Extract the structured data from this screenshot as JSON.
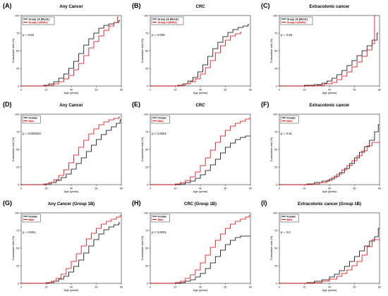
{
  "chart_data": [
    {
      "letter": "(A)",
      "title": "Any Cancer",
      "type": "line",
      "xlabel": "Age (years)",
      "ylabel": "Cumulative risk (%)",
      "xlim": [
        0,
        80
      ],
      "ylim": [
        0,
        100
      ],
      "xticks": [
        0,
        20,
        40,
        60,
        80
      ],
      "yticks": [
        0,
        25,
        50,
        75,
        100
      ],
      "pvalue": "p = 0.03",
      "legend": [
        "Group 1A (MLH1)",
        "Group 2 (MSH2)"
      ],
      "series": [
        {
          "name": "Group 1A (MLH1)",
          "color": "#000000",
          "x": [
            0,
            18,
            22,
            26,
            30,
            34,
            38,
            42,
            46,
            50,
            54,
            58,
            62,
            66,
            70,
            74,
            78
          ],
          "y": [
            0,
            1,
            3,
            6,
            11,
            17,
            25,
            35,
            46,
            58,
            67,
            75,
            82,
            86,
            88,
            90,
            93
          ]
        },
        {
          "name": "Group 2 (MSH2)",
          "color": "#e00000",
          "x": [
            0,
            20,
            26,
            30,
            34,
            38,
            42,
            46,
            50,
            54,
            58,
            62,
            66,
            70,
            74,
            77
          ],
          "y": [
            0,
            1,
            3,
            6,
            10,
            15,
            23,
            32,
            43,
            54,
            63,
            71,
            79,
            85,
            90,
            98
          ]
        }
      ]
    },
    {
      "letter": "(B)",
      "title": "CRC",
      "type": "line",
      "xlabel": "Age (years)",
      "ylabel": "Cumulative risk (%)",
      "xlim": [
        0,
        80
      ],
      "ylim": [
        0,
        100
      ],
      "xticks": [
        0,
        20,
        40,
        60,
        80
      ],
      "yticks": [
        0,
        25,
        50,
        75,
        100
      ],
      "pvalue": "p = 0.036",
      "legend": [
        "Group 1A (MLH1)",
        "Group 2 (MSH2)"
      ],
      "series": [
        {
          "name": "Group 1A (MLH1)",
          "color": "#000000",
          "x": [
            0,
            22,
            26,
            30,
            34,
            38,
            42,
            46,
            50,
            54,
            58,
            62,
            66,
            70,
            74,
            78
          ],
          "y": [
            0,
            1,
            3,
            7,
            12,
            20,
            30,
            42,
            53,
            62,
            70,
            76,
            80,
            83,
            85,
            87
          ]
        },
        {
          "name": "Group 2 (MSH2)",
          "color": "#e00000",
          "x": [
            0,
            24,
            28,
            32,
            36,
            40,
            44,
            48,
            52,
            56,
            60,
            64,
            68,
            72
          ],
          "y": [
            0,
            1,
            3,
            6,
            10,
            17,
            26,
            36,
            47,
            57,
            65,
            71,
            74,
            76
          ]
        }
      ]
    },
    {
      "letter": "(C)",
      "title": "Extracolonic cancer",
      "type": "line",
      "xlabel": "Age (years)",
      "ylabel": "Cumulative risk (%)",
      "xlim": [
        0,
        80
      ],
      "ylim": [
        0,
        100
      ],
      "xticks": [
        0,
        20,
        40,
        60,
        80
      ],
      "yticks": [
        0,
        25,
        50,
        75,
        100
      ],
      "pvalue": "p = 0.28",
      "legend": [
        "Group 1A (MLH1)",
        "Group 2 (MSH2)"
      ],
      "series": [
        {
          "name": "Group 1A (MLH1)",
          "color": "#000000",
          "x": [
            0,
            20,
            28,
            34,
            38,
            42,
            46,
            50,
            54,
            58,
            62,
            66,
            70,
            74,
            78
          ],
          "y": [
            0,
            1,
            2,
            4,
            7,
            11,
            16,
            22,
            29,
            36,
            43,
            50,
            57,
            65,
            75
          ]
        },
        {
          "name": "Group 2 (MSH2)",
          "color": "#e00000",
          "x": [
            0,
            30,
            36,
            42,
            46,
            50,
            54,
            58,
            62,
            66,
            70,
            74,
            76
          ],
          "y": [
            0,
            1,
            3,
            5,
            9,
            14,
            20,
            27,
            34,
            42,
            51,
            60,
            100
          ]
        }
      ]
    },
    {
      "letter": "(D)",
      "title": "Any Cancer",
      "type": "line",
      "xlabel": "Age (years)",
      "ylabel": "Cumulative risk (%)",
      "xlim": [
        0,
        80
      ],
      "ylim": [
        0,
        100
      ],
      "xticks": [
        0,
        20,
        40,
        60,
        80
      ],
      "yticks": [
        0,
        25,
        50,
        75,
        100
      ],
      "pvalue": "p = 0.000203",
      "legend": [
        "Female",
        "Male"
      ],
      "series": [
        {
          "name": "Female",
          "color": "#000000",
          "x": [
            0,
            20,
            24,
            28,
            32,
            36,
            40,
            44,
            48,
            52,
            56,
            60,
            64,
            68,
            72,
            76,
            79
          ],
          "y": [
            0,
            1,
            3,
            6,
            10,
            15,
            22,
            30,
            38,
            47,
            56,
            64,
            71,
            77,
            82,
            87,
            92
          ]
        },
        {
          "name": "Male",
          "color": "#e00000",
          "x": [
            0,
            18,
            22,
            26,
            30,
            34,
            38,
            42,
            46,
            50,
            54,
            58,
            62,
            66,
            70,
            74,
            78
          ],
          "y": [
            0,
            1,
            3,
            7,
            13,
            21,
            31,
            42,
            53,
            63,
            72,
            79,
            85,
            89,
            92,
            94,
            96
          ]
        }
      ]
    },
    {
      "letter": "(E)",
      "title": "CRC",
      "type": "line",
      "xlabel": "Age (years)",
      "ylabel": "Cumulative risk (%)",
      "xlim": [
        0,
        80
      ],
      "ylim": [
        0,
        100
      ],
      "xticks": [
        0,
        20,
        40,
        60,
        80
      ],
      "yticks": [
        0,
        25,
        50,
        75,
        100
      ],
      "pvalue": "p < 0.0001",
      "legend": [
        "Female",
        "Male"
      ],
      "series": [
        {
          "name": "Female",
          "color": "#000000",
          "x": [
            0,
            24,
            28,
            32,
            36,
            40,
            44,
            48,
            52,
            56,
            60,
            64,
            68,
            72,
            76,
            79
          ],
          "y": [
            0,
            1,
            3,
            5,
            9,
            14,
            20,
            28,
            36,
            45,
            53,
            59,
            64,
            67,
            69,
            69
          ]
        },
        {
          "name": "Male",
          "color": "#e00000",
          "x": [
            0,
            20,
            24,
            28,
            32,
            36,
            40,
            44,
            48,
            52,
            56,
            60,
            64,
            68,
            72,
            76,
            79
          ],
          "y": [
            0,
            1,
            3,
            6,
            11,
            18,
            27,
            38,
            49,
            60,
            69,
            77,
            83,
            87,
            90,
            93,
            94
          ]
        }
      ]
    },
    {
      "letter": "(F)",
      "title": "Extracolonic cancer",
      "type": "line",
      "xlabel": "Age (years)",
      "ylabel": "Cumulative risk (%)",
      "xlim": [
        0,
        80
      ],
      "ylim": [
        0,
        100
      ],
      "xticks": [
        0,
        20,
        40,
        60,
        80
      ],
      "yticks": [
        0,
        25,
        50,
        75,
        100
      ],
      "pvalue": "p = 0.41",
      "legend": [
        "Female",
        "Male"
      ],
      "series": [
        {
          "name": "Female",
          "color": "#000000",
          "x": [
            0,
            22,
            28,
            34,
            40,
            44,
            48,
            52,
            56,
            60,
            64,
            68,
            72,
            76,
            79
          ],
          "y": [
            0,
            1,
            3,
            5,
            8,
            12,
            17,
            23,
            30,
            38,
            46,
            54,
            63,
            75,
            85
          ]
        },
        {
          "name": "Male",
          "color": "#e00000",
          "x": [
            0,
            26,
            32,
            38,
            42,
            46,
            50,
            54,
            58,
            62,
            66,
            70,
            74,
            79
          ],
          "y": [
            0,
            1,
            3,
            6,
            10,
            15,
            21,
            27,
            34,
            41,
            48,
            55,
            60,
            60
          ]
        }
      ]
    },
    {
      "letter": "(G)",
      "title": "Any Cancer (Group 1B)",
      "type": "line",
      "xlabel": "Age (years)",
      "ylabel": "Cumulative risk (%)",
      "xlim": [
        0,
        80
      ],
      "ylim": [
        0,
        100
      ],
      "xticks": [
        0,
        20,
        40,
        60,
        80
      ],
      "yticks": [
        0,
        25,
        50,
        75,
        100
      ],
      "pvalue": "p = 0.001",
      "legend": [
        "Female",
        "Male"
      ],
      "series": [
        {
          "name": "Female",
          "color": "#000000",
          "x": [
            0,
            22,
            26,
            30,
            34,
            38,
            42,
            46,
            50,
            54,
            58,
            62,
            66,
            70,
            74,
            78
          ],
          "y": [
            0,
            1,
            3,
            6,
            10,
            16,
            24,
            33,
            43,
            53,
            62,
            70,
            76,
            80,
            83,
            86
          ]
        },
        {
          "name": "Male",
          "color": "#e00000",
          "x": [
            0,
            20,
            24,
            28,
            32,
            36,
            40,
            44,
            48,
            52,
            56,
            60,
            64,
            68,
            72,
            76,
            79
          ],
          "y": [
            0,
            1,
            3,
            7,
            13,
            21,
            31,
            42,
            53,
            63,
            71,
            78,
            84,
            88,
            91,
            94,
            96
          ]
        }
      ]
    },
    {
      "letter": "(H)",
      "title": "CRC (Group 1B)",
      "type": "line",
      "xlabel": "Age (years)",
      "ylabel": "Cumulative risk (%)",
      "xlim": [
        0,
        80
      ],
      "ylim": [
        0,
        100
      ],
      "xticks": [
        0,
        20,
        40,
        60,
        80
      ],
      "yticks": [
        0,
        25,
        50,
        75,
        100
      ],
      "pvalue": "p < 0.0001",
      "legend": [
        "Female",
        "Male"
      ],
      "series": [
        {
          "name": "Female",
          "color": "#000000",
          "x": [
            0,
            24,
            28,
            32,
            36,
            40,
            44,
            48,
            52,
            56,
            60,
            64,
            68,
            72,
            76,
            79
          ],
          "y": [
            0,
            1,
            3,
            5,
            9,
            14,
            21,
            29,
            38,
            47,
            55,
            61,
            65,
            67,
            67,
            67
          ]
        },
        {
          "name": "Male",
          "color": "#e00000",
          "x": [
            0,
            20,
            24,
            28,
            32,
            36,
            40,
            44,
            48,
            52,
            56,
            60,
            64,
            68,
            72,
            76,
            79
          ],
          "y": [
            0,
            1,
            3,
            7,
            12,
            19,
            29,
            40,
            51,
            61,
            70,
            78,
            84,
            88,
            91,
            94,
            96
          ]
        }
      ]
    },
    {
      "letter": "(I)",
      "title": "Extracolonic cancer (Group 1B)",
      "type": "line",
      "xlabel": "Age (years)",
      "ylabel": "Cumulative risk (%)",
      "xlim": [
        0,
        80
      ],
      "ylim": [
        0,
        100
      ],
      "xticks": [
        0,
        20,
        40,
        60,
        80
      ],
      "yticks": [
        0,
        25,
        50,
        75,
        100
      ],
      "pvalue": "p = 0.2",
      "legend": [
        "Female",
        "Male"
      ],
      "series": [
        {
          "name": "Female",
          "color": "#000000",
          "x": [
            0,
            22,
            28,
            34,
            40,
            44,
            48,
            52,
            56,
            60,
            64,
            68,
            72,
            76,
            79
          ],
          "y": [
            0,
            1,
            3,
            5,
            9,
            13,
            18,
            24,
            31,
            38,
            46,
            53,
            60,
            66,
            78
          ]
        },
        {
          "name": "Male",
          "color": "#e00000",
          "x": [
            0,
            28,
            34,
            40,
            46,
            50,
            54,
            58,
            62,
            66,
            70,
            74,
            79
          ],
          "y": [
            0,
            1,
            3,
            6,
            10,
            14,
            19,
            25,
            31,
            40,
            52,
            62,
            62
          ]
        }
      ]
    }
  ]
}
